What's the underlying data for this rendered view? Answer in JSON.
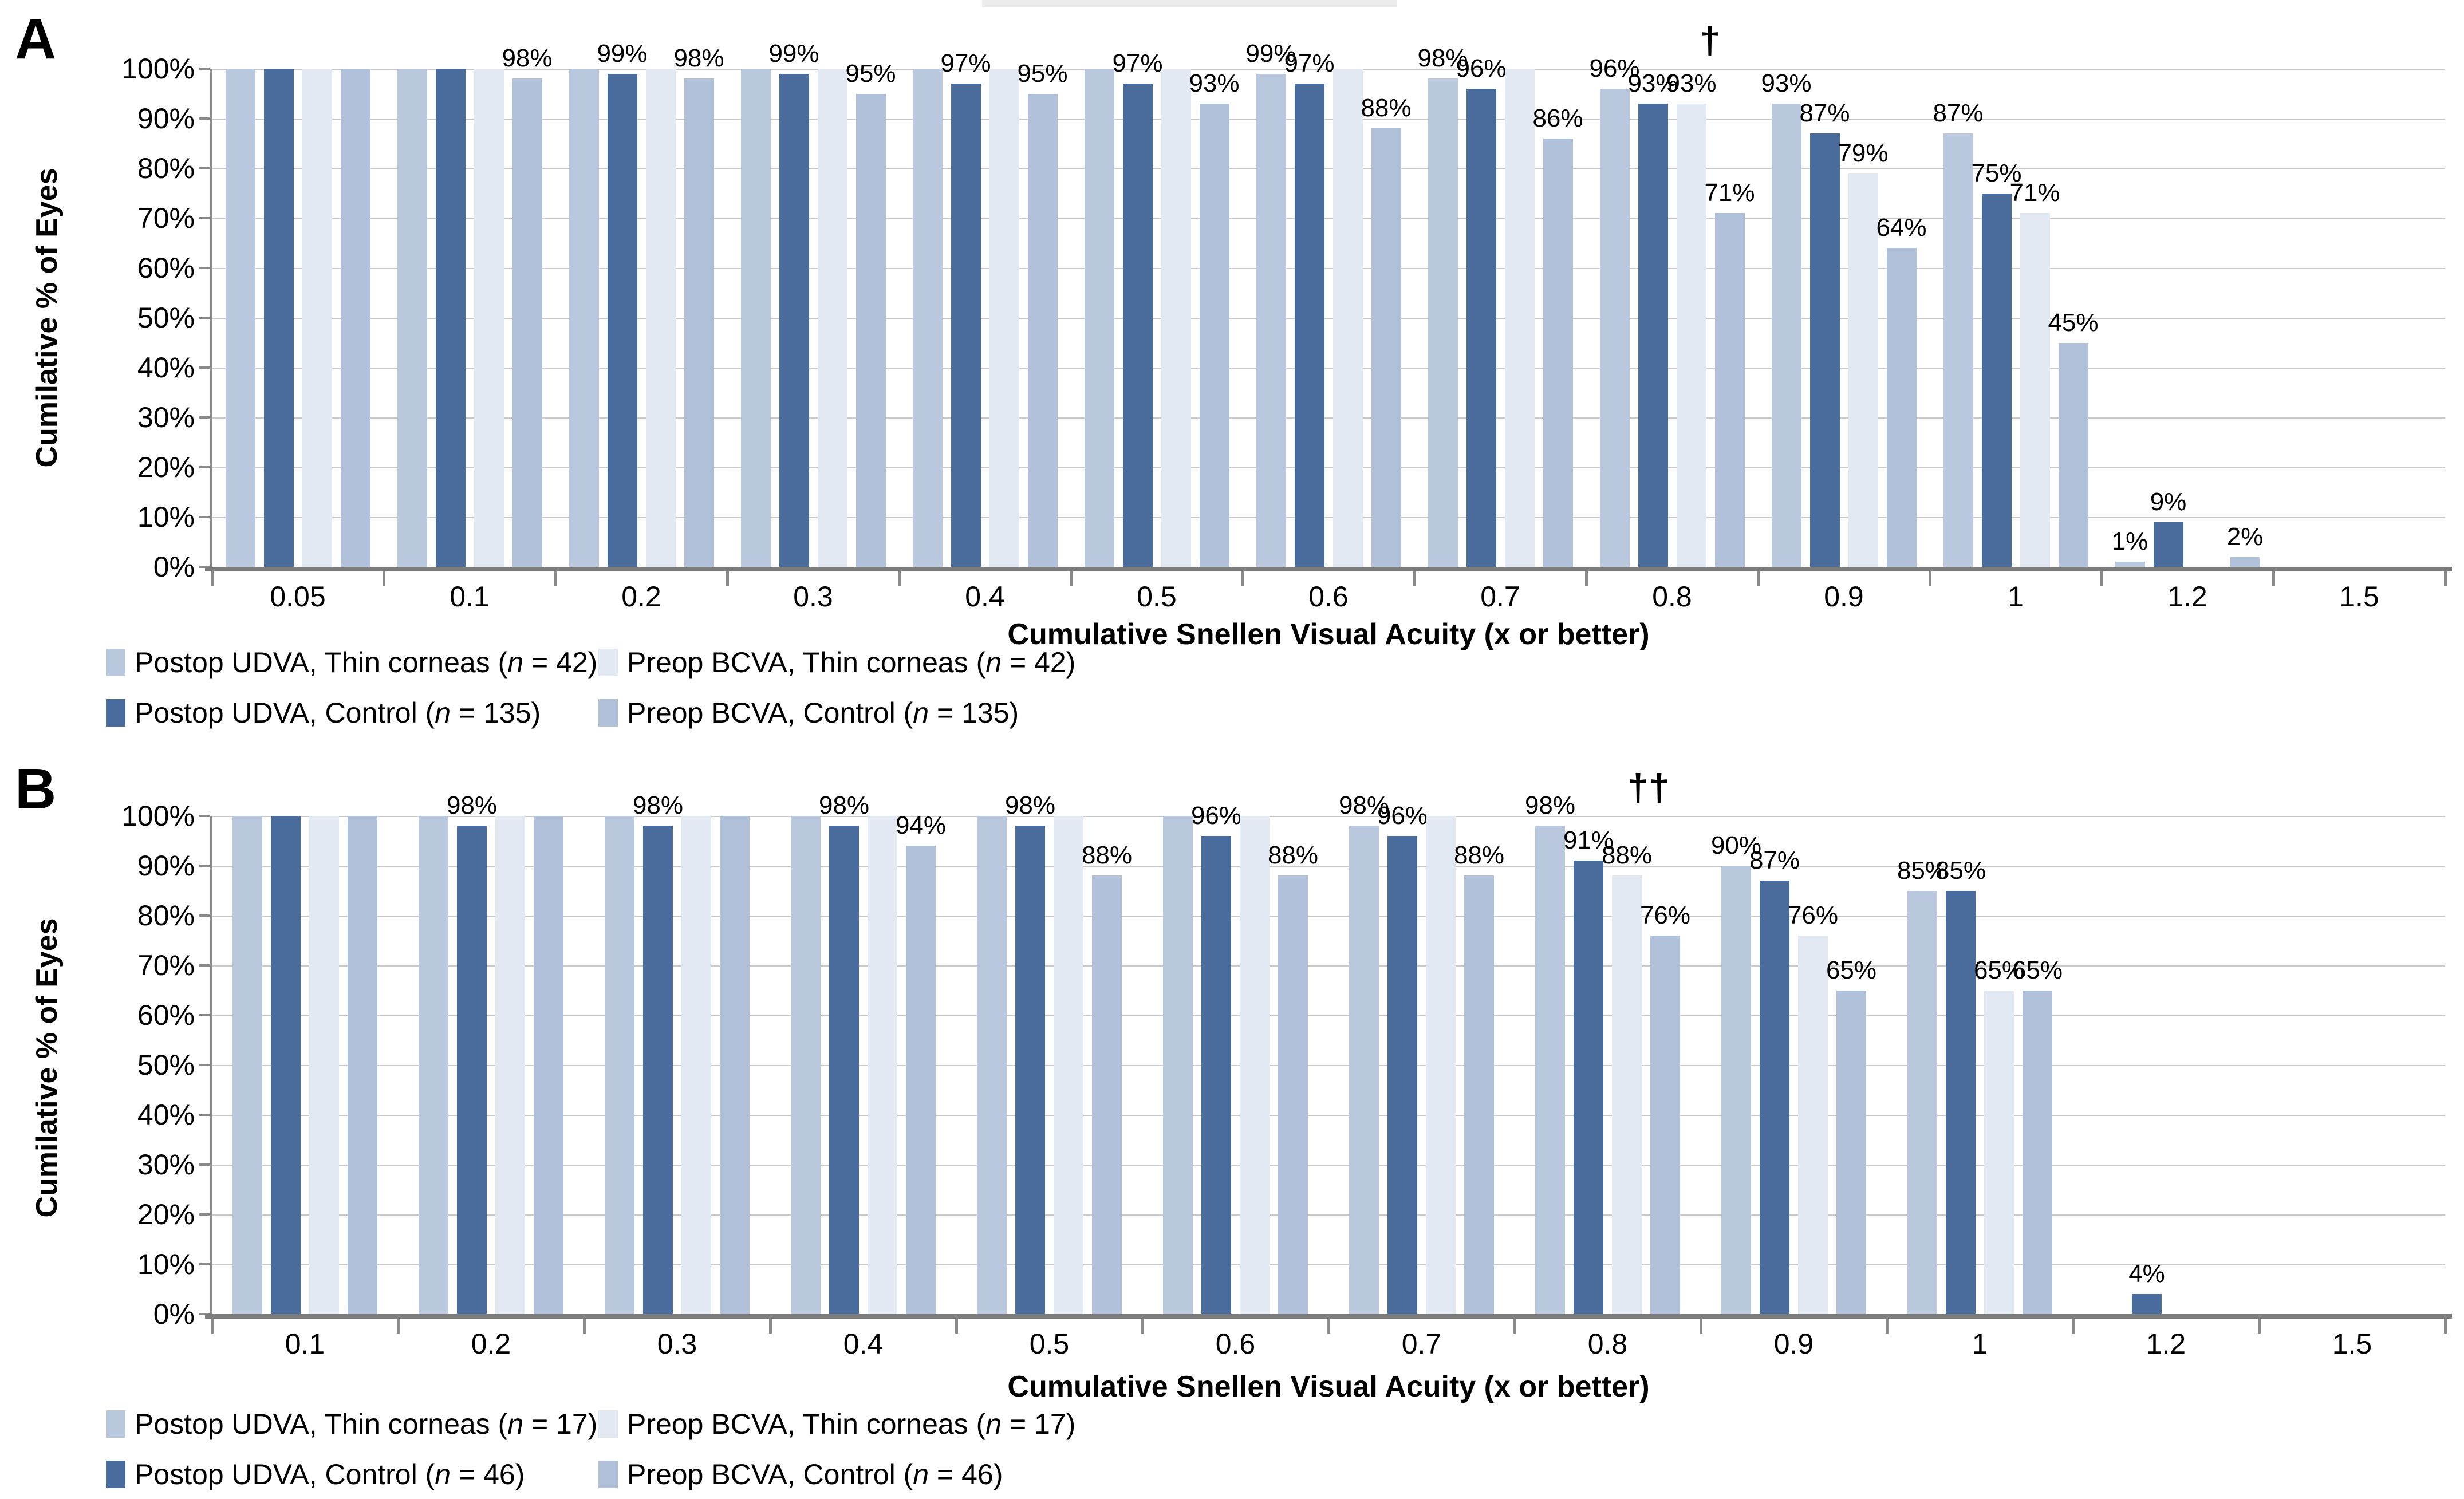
{
  "chart_data": [
    {
      "panel_label": "A",
      "type": "bar",
      "y_axis_title": "Cumilative % of Eyes",
      "x_axis_title": "Cumulative Snellen Visual Acuity (x or better)",
      "ylim": [
        0,
        100
      ],
      "y_tick_labels": [
        "100%",
        "90%",
        "80%",
        "70%",
        "60%",
        "50%",
        "40%",
        "30%",
        "20%",
        "10%",
        "0%"
      ],
      "grid": true,
      "legend_position": "bottom",
      "value_label_suffix": "%",
      "annotation": {
        "symbol": "†",
        "category": "0.8"
      },
      "categories": [
        "0.05",
        "0.1",
        "0.2",
        "0.3",
        "0.4",
        "0.5",
        "0.6",
        "0.7",
        "0.8",
        "0.9",
        "1",
        "1.2",
        "1.5"
      ],
      "series": [
        {
          "name": "Postop UDVA, Thin corneas",
          "n": "42",
          "color": "#b9c8dc",
          "values": [
            100,
            100,
            100,
            100,
            100,
            100,
            99,
            98,
            96,
            93,
            87,
            1,
            0
          ]
        },
        {
          "name": "Postop UDVA, Control",
          "n": "135",
          "color": "#4a6c9d",
          "values": [
            100,
            100,
            99,
            99,
            97,
            97,
            97,
            96,
            93,
            87,
            75,
            9,
            0
          ]
        },
        {
          "name": "Preop BCVA, Thin corneas",
          "n": "42",
          "color": "#e3e9f2",
          "values": [
            100,
            100,
            100,
            100,
            100,
            100,
            100,
            100,
            93,
            79,
            71,
            0,
            0
          ]
        },
        {
          "name": "Preop BCVA, Control",
          "n": "135",
          "color": "#afc0d8",
          "values": [
            100,
            98,
            98,
            95,
            95,
            93,
            88,
            86,
            71,
            64,
            45,
            2,
            0
          ]
        }
      ]
    },
    {
      "panel_label": "B",
      "type": "bar",
      "y_axis_title": "Cumilative % of Eyes",
      "x_axis_title": "Cumulative Snellen Visual Acuity (x or better)",
      "ylim": [
        0,
        100
      ],
      "y_tick_labels": [
        "100%",
        "90%",
        "80%",
        "70%",
        "60%",
        "50%",
        "40%",
        "30%",
        "20%",
        "10%",
        "0%"
      ],
      "grid": true,
      "legend_position": "bottom",
      "value_label_suffix": "%",
      "annotation": {
        "symbol": "††",
        "category": "0.8"
      },
      "categories": [
        "0.1",
        "0.2",
        "0.3",
        "0.4",
        "0.5",
        "0.6",
        "0.7",
        "0.8",
        "0.9",
        "1",
        "1.2",
        "1.5"
      ],
      "series": [
        {
          "name": "Postop UDVA, Thin corneas",
          "n": "17",
          "color": "#b9c8dc",
          "values": [
            100,
            100,
            100,
            100,
            100,
            100,
            98,
            98,
            90,
            85,
            0,
            0
          ]
        },
        {
          "name": "Postop UDVA, Control",
          "n": "46",
          "color": "#4a6c9d",
          "values": [
            100,
            98,
            98,
            98,
            98,
            96,
            96,
            91,
            87,
            85,
            4,
            0
          ]
        },
        {
          "name": "Preop BCVA, Thin corneas",
          "n": "17",
          "color": "#e3e9f2",
          "values": [
            100,
            100,
            100,
            100,
            100,
            100,
            100,
            88,
            76,
            65,
            0,
            0
          ]
        },
        {
          "name": "Preop BCVA, Control",
          "n": "46",
          "color": "#afc0d8",
          "values": [
            100,
            100,
            100,
            94,
            88,
            88,
            88,
            76,
            65,
            65,
            0,
            0
          ]
        }
      ]
    }
  ]
}
